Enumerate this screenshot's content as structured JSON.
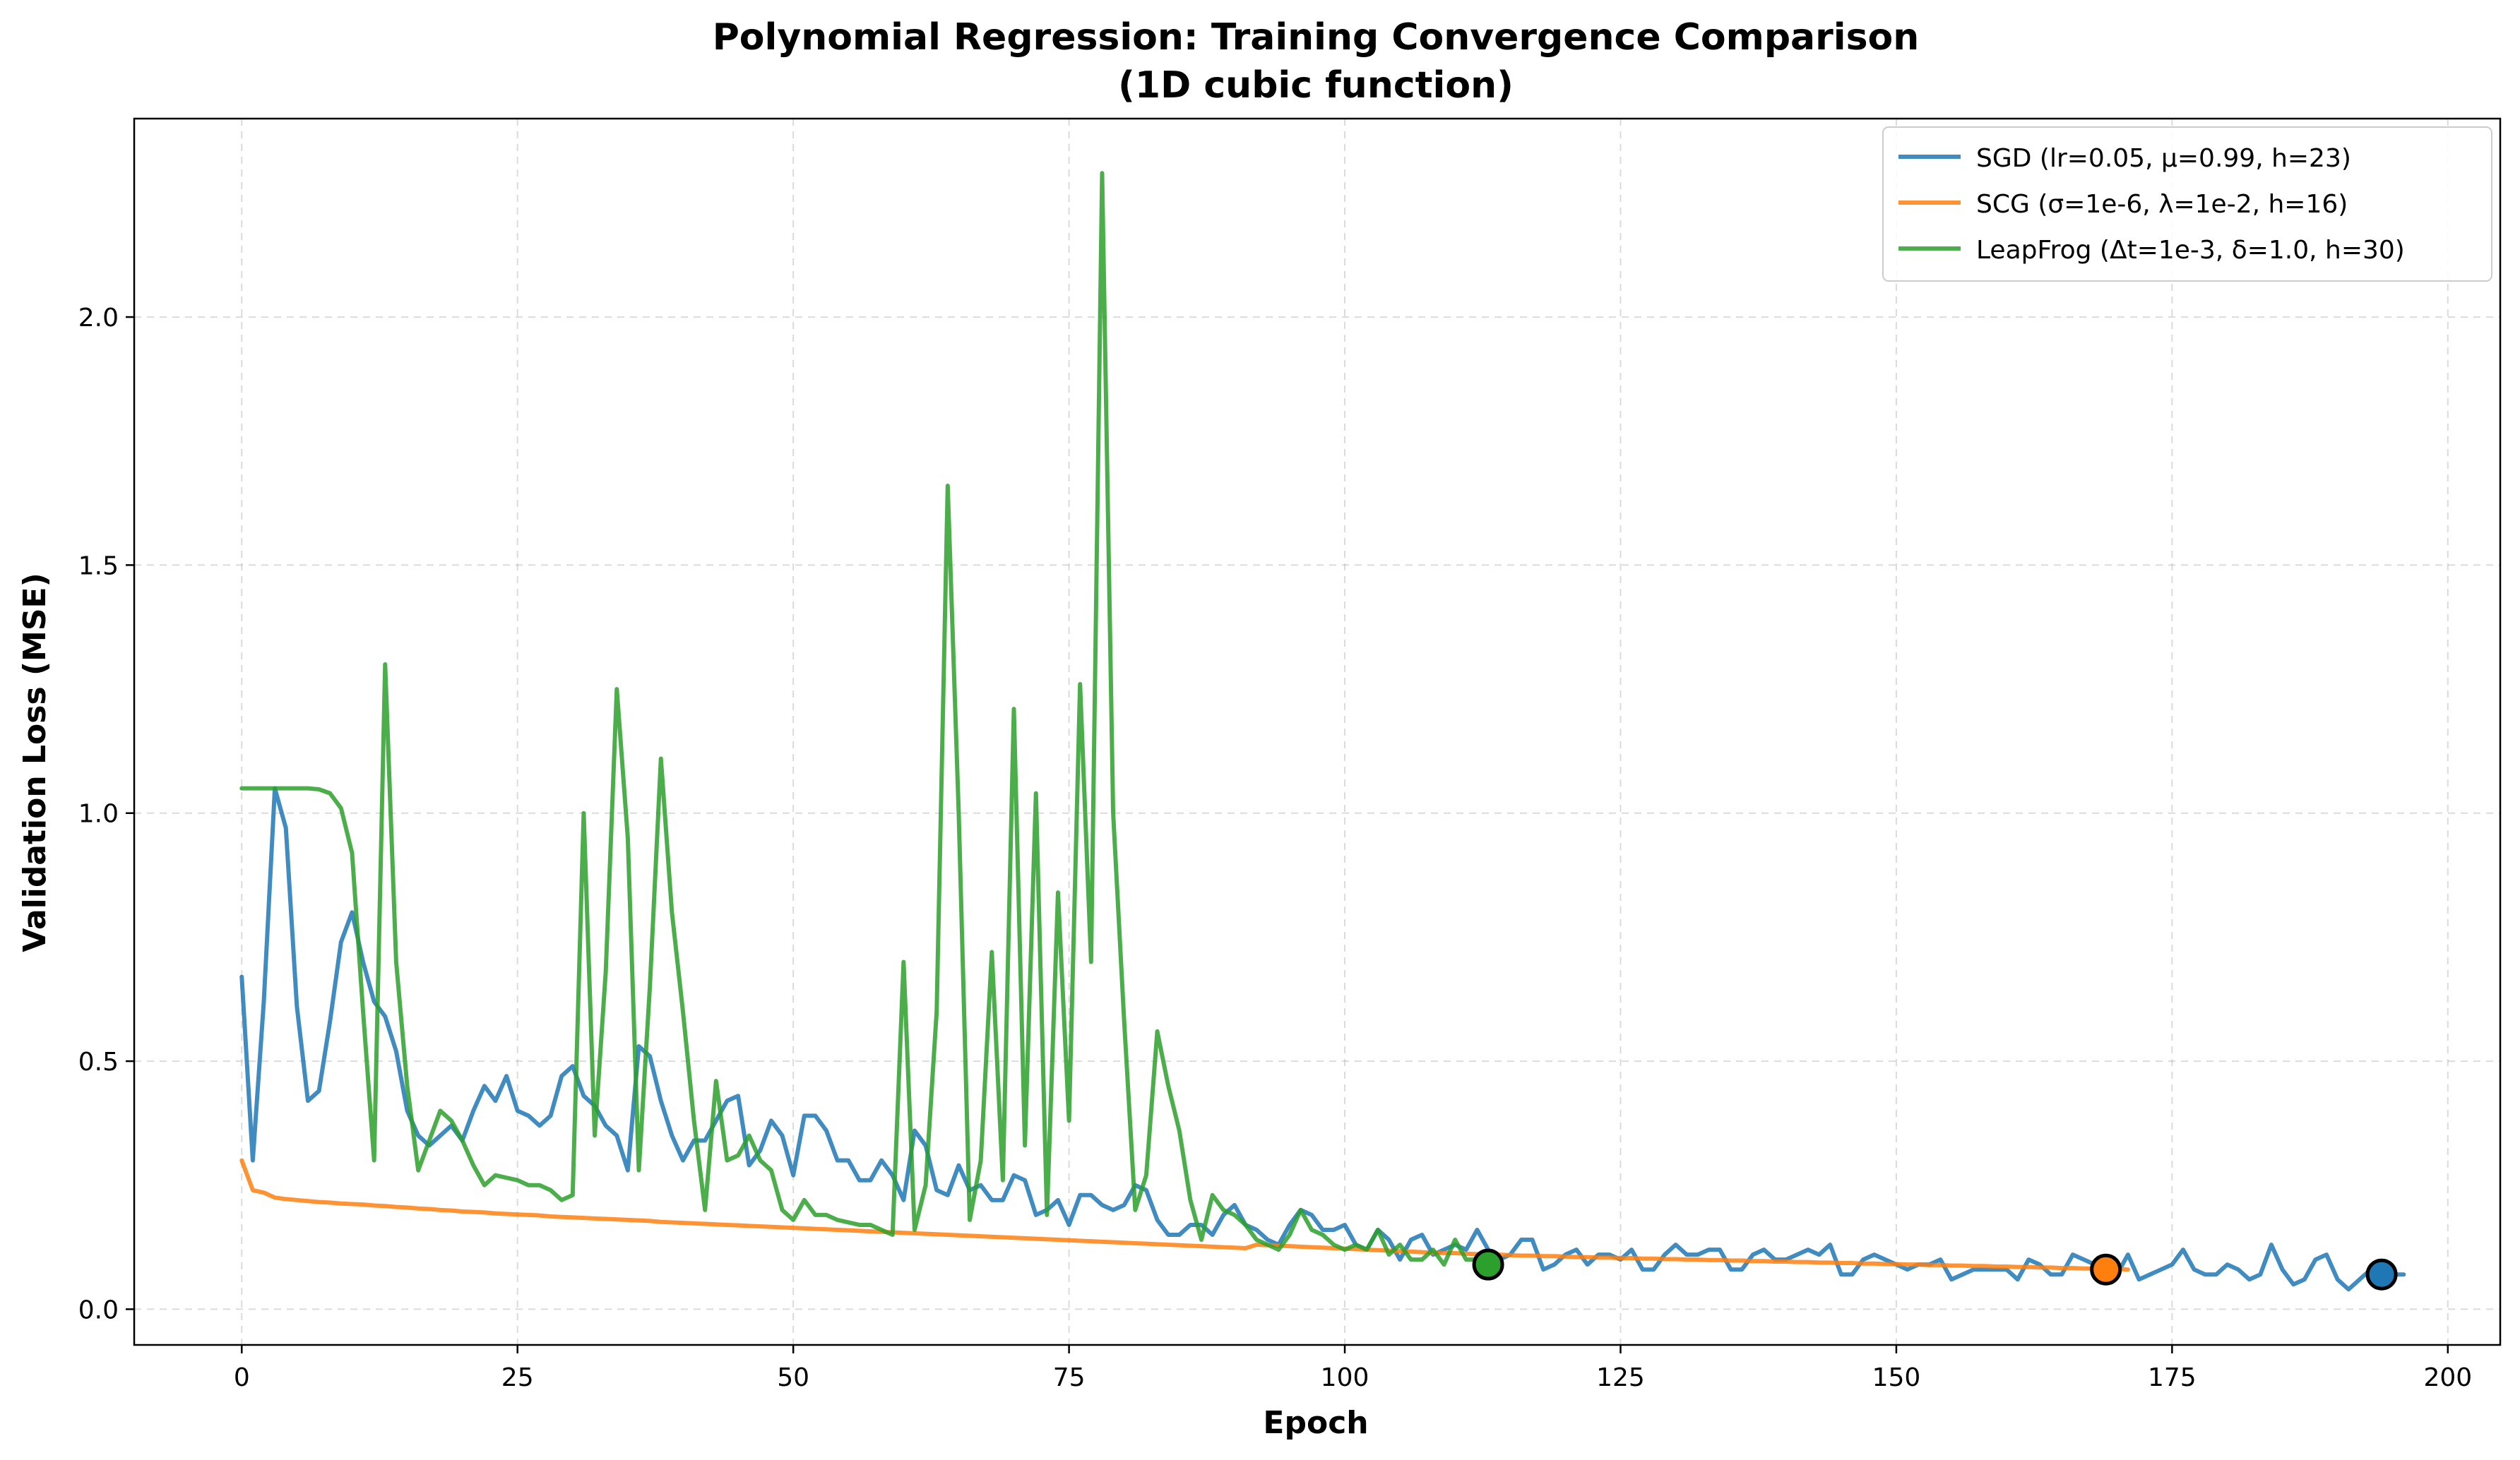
{
  "chart_data": {
    "type": "line",
    "title": "Polynomial Regression: Training Convergence Comparison",
    "subtitle": "(1D cubic function)",
    "xlabel": "Epoch",
    "ylabel": "Validation Loss (MSE)",
    "xlim": [
      -9.75,
      204.75
    ],
    "ylim": [
      -0.072,
      2.4
    ],
    "x_ticks": [
      0,
      25,
      50,
      75,
      100,
      125,
      150,
      175,
      200
    ],
    "y_ticks": [
      0.0,
      0.5,
      1.0,
      1.5,
      2.0
    ],
    "x_tick_labels": [
      "0",
      "25",
      "50",
      "75",
      "100",
      "125",
      "150",
      "175",
      "200"
    ],
    "y_tick_labels": [
      "0.0",
      "0.5",
      "1.0",
      "1.5",
      "2.0"
    ],
    "grid": true,
    "legend_position": "top-right",
    "series": [
      {
        "name": "SGD (lr=0.05, μ=0.99, h=23)",
        "color": "#1f77b4",
        "x_start": 0,
        "marker": {
          "x": 194,
          "y": 0.07
        },
        "values": [
          0.67,
          0.3,
          0.62,
          1.05,
          0.97,
          0.61,
          0.42,
          0.44,
          0.58,
          0.74,
          0.8,
          0.7,
          0.62,
          0.59,
          0.52,
          0.4,
          0.35,
          0.33,
          0.35,
          0.37,
          0.34,
          0.4,
          0.45,
          0.42,
          0.47,
          0.4,
          0.39,
          0.37,
          0.39,
          0.47,
          0.49,
          0.43,
          0.41,
          0.37,
          0.35,
          0.28,
          0.53,
          0.51,
          0.42,
          0.35,
          0.3,
          0.34,
          0.34,
          0.38,
          0.42,
          0.43,
          0.29,
          0.32,
          0.38,
          0.35,
          0.27,
          0.39,
          0.39,
          0.36,
          0.3,
          0.3,
          0.26,
          0.26,
          0.3,
          0.27,
          0.22,
          0.36,
          0.33,
          0.24,
          0.23,
          0.29,
          0.24,
          0.25,
          0.22,
          0.22,
          0.27,
          0.26,
          0.19,
          0.2,
          0.22,
          0.17,
          0.23,
          0.23,
          0.21,
          0.2,
          0.21,
          0.25,
          0.24,
          0.18,
          0.15,
          0.15,
          0.17,
          0.17,
          0.15,
          0.19,
          0.21,
          0.17,
          0.16,
          0.14,
          0.13,
          0.17,
          0.2,
          0.19,
          0.16,
          0.16,
          0.17,
          0.13,
          0.12,
          0.16,
          0.14,
          0.1,
          0.14,
          0.15,
          0.11,
          0.12,
          0.13,
          0.12,
          0.16,
          0.12,
          0.1,
          0.11,
          0.14,
          0.14,
          0.08,
          0.09,
          0.11,
          0.12,
          0.09,
          0.11,
          0.11,
          0.1,
          0.12,
          0.08,
          0.08,
          0.11,
          0.13,
          0.11,
          0.11,
          0.12,
          0.12,
          0.08,
          0.08,
          0.11,
          0.12,
          0.1,
          0.1,
          0.11,
          0.12,
          0.11,
          0.13,
          0.07,
          0.07,
          0.1,
          0.11,
          0.1,
          0.09,
          0.08,
          0.09,
          0.09,
          0.1,
          0.06,
          0.07,
          0.08,
          0.08,
          0.08,
          0.08,
          0.06,
          0.1,
          0.09,
          0.07,
          0.07,
          0.11,
          0.1,
          0.09,
          0.07,
          0.07,
          0.11,
          0.06,
          0.07,
          0.08,
          0.09,
          0.12,
          0.08,
          0.07,
          0.07,
          0.09,
          0.08,
          0.06,
          0.07,
          0.13,
          0.08,
          0.05,
          0.06,
          0.1,
          0.11,
          0.06,
          0.04,
          0.06,
          0.08,
          0.07,
          0.07,
          0.07
        ]
      },
      {
        "name": "SCG (σ=1e-6, λ=1e-2, h=16)",
        "color": "#ff7f0e",
        "x_start": 0,
        "marker": {
          "x": 169,
          "y": 0.08
        },
        "values": [
          0.3,
          0.24,
          0.235,
          0.225,
          0.222,
          0.22,
          0.218,
          0.216,
          0.215,
          0.213,
          0.212,
          0.211,
          0.209,
          0.208,
          0.206,
          0.205,
          0.203,
          0.202,
          0.2,
          0.199,
          0.197,
          0.196,
          0.195,
          0.193,
          0.192,
          0.191,
          0.19,
          0.189,
          0.187,
          0.186,
          0.185,
          0.184,
          0.183,
          0.182,
          0.181,
          0.18,
          0.179,
          0.178,
          0.176,
          0.175,
          0.174,
          0.173,
          0.172,
          0.171,
          0.17,
          0.169,
          0.168,
          0.167,
          0.166,
          0.165,
          0.164,
          0.163,
          0.162,
          0.161,
          0.16,
          0.159,
          0.158,
          0.157,
          0.156,
          0.155,
          0.154,
          0.153,
          0.152,
          0.151,
          0.15,
          0.149,
          0.148,
          0.147,
          0.146,
          0.145,
          0.144,
          0.143,
          0.142,
          0.141,
          0.14,
          0.139,
          0.138,
          0.137,
          0.136,
          0.135,
          0.134,
          0.133,
          0.132,
          0.131,
          0.13,
          0.129,
          0.128,
          0.127,
          0.126,
          0.125,
          0.124,
          0.123,
          0.13,
          0.129,
          0.128,
          0.127,
          0.126,
          0.125,
          0.124,
          0.123,
          0.122,
          0.121,
          0.12,
          0.119,
          0.118,
          0.117,
          0.116,
          0.115,
          0.114,
          0.113,
          0.113,
          0.112,
          0.111,
          0.11,
          0.11,
          0.109,
          0.108,
          0.108,
          0.107,
          0.107,
          0.106,
          0.105,
          0.105,
          0.104,
          0.104,
          0.103,
          0.103,
          0.102,
          0.102,
          0.101,
          0.101,
          0.1,
          0.1,
          0.099,
          0.099,
          0.098,
          0.098,
          0.097,
          0.097,
          0.096,
          0.096,
          0.095,
          0.095,
          0.094,
          0.094,
          0.093,
          0.093,
          0.092,
          0.092,
          0.091,
          0.091,
          0.09,
          0.09,
          0.089,
          0.089,
          0.088,
          0.088,
          0.087,
          0.087,
          0.086,
          0.086,
          0.085,
          0.085,
          0.084,
          0.084,
          0.083,
          0.083,
          0.082,
          0.082,
          0.081,
          0.081,
          0.08
        ]
      },
      {
        "name": "LeapFrog (Δt=1e-3, δ=1.0, h=30)",
        "color": "#2ca02c",
        "x_start": 0,
        "marker": {
          "x": 113,
          "y": 0.09
        },
        "values": [
          1.05,
          1.05,
          1.05,
          1.05,
          1.05,
          1.05,
          1.05,
          1.048,
          1.04,
          1.01,
          0.92,
          0.6,
          0.3,
          1.3,
          0.7,
          0.45,
          0.28,
          0.34,
          0.4,
          0.38,
          0.34,
          0.29,
          0.25,
          0.27,
          0.265,
          0.26,
          0.25,
          0.25,
          0.24,
          0.22,
          0.23,
          1.0,
          0.35,
          0.68,
          1.25,
          0.95,
          0.28,
          0.65,
          1.11,
          0.8,
          0.6,
          0.38,
          0.2,
          0.46,
          0.3,
          0.31,
          0.35,
          0.3,
          0.28,
          0.2,
          0.18,
          0.22,
          0.19,
          0.19,
          0.18,
          0.175,
          0.17,
          0.17,
          0.16,
          0.15,
          0.7,
          0.16,
          0.25,
          0.6,
          1.66,
          1.0,
          0.18,
          0.3,
          0.72,
          0.26,
          1.21,
          0.33,
          1.04,
          0.19,
          0.84,
          0.38,
          1.26,
          0.7,
          2.29,
          1.0,
          0.58,
          0.2,
          0.27,
          0.56,
          0.45,
          0.36,
          0.22,
          0.14,
          0.23,
          0.2,
          0.19,
          0.17,
          0.14,
          0.13,
          0.12,
          0.15,
          0.2,
          0.16,
          0.15,
          0.13,
          0.12,
          0.13,
          0.12,
          0.16,
          0.11,
          0.13,
          0.1,
          0.1,
          0.12,
          0.09,
          0.14,
          0.1,
          0.1,
          0.09
        ]
      }
    ]
  }
}
